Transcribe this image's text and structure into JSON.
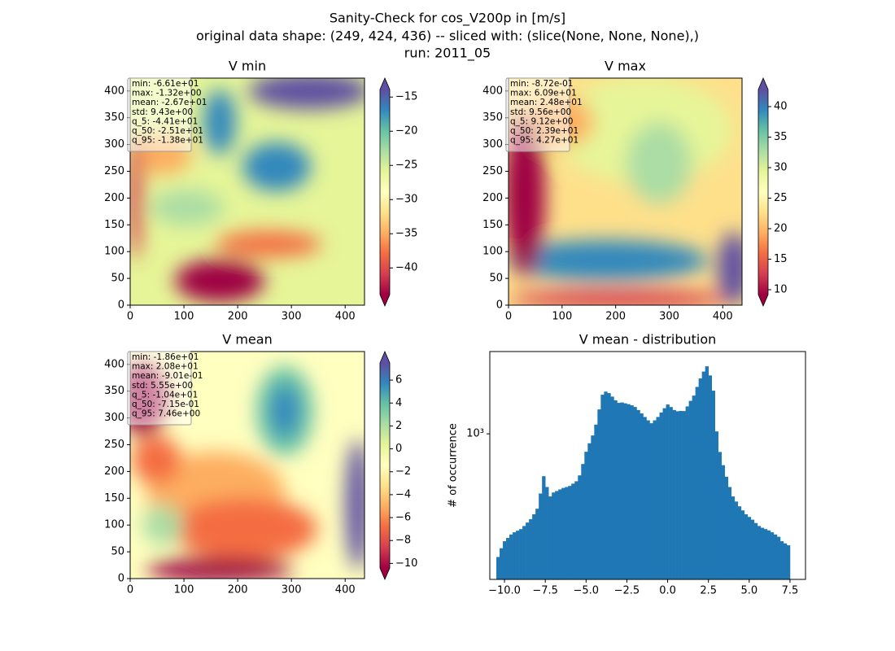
{
  "title": [
    "Sanity-Check for cos_V200p in [m/s]",
    "original data shape: (249, 424, 436) -- sliced with: (slice(None, None, None),)",
    "run: 2011_05"
  ],
  "chart_data": [
    {
      "type": "heatmap",
      "title": "V min",
      "colormap": "Spectral",
      "xlim": [
        0,
        436
      ],
      "ylim": [
        0,
        424
      ],
      "xticks": [
        0,
        100,
        200,
        300,
        400
      ],
      "yticks": [
        0,
        50,
        100,
        150,
        200,
        250,
        300,
        350,
        400
      ],
      "clim": [
        -43.9,
        -13.9
      ],
      "cticks": [
        {
          "value": -40,
          "label": "−40"
        },
        {
          "value": -35,
          "label": "−35"
        },
        {
          "value": -30,
          "label": "−30"
        },
        {
          "value": -25,
          "label": "−25"
        },
        {
          "value": -20,
          "label": "−20"
        },
        {
          "value": -15,
          "label": "−15"
        }
      ],
      "stats": [
        "min: -6.61e+01",
        "max: -1.32e+00",
        "mean: -2.67e+01",
        "std: 9.43e+00",
        "q_5: -4.41e+01",
        "q_50: -2.51e+01",
        "q_95: -1.38e+01"
      ]
    },
    {
      "type": "heatmap",
      "title": "V max",
      "colormap": "Spectral",
      "xlim": [
        0,
        436
      ],
      "ylim": [
        0,
        424
      ],
      "xticks": [
        0,
        100,
        200,
        300,
        400
      ],
      "yticks": [
        0,
        50,
        100,
        150,
        200,
        250,
        300,
        350,
        400
      ],
      "clim": [
        9.2,
        42.8
      ],
      "cticks": [
        10,
        15,
        20,
        25,
        30,
        35,
        40
      ],
      "stats": [
        "min: -8.72e-01",
        "max: 6.09e+01",
        "mean: 2.48e+01",
        "std: 9.56e+00",
        "q_5: 9.12e+00",
        "q_50: 2.39e+01",
        "q_95: 4.27e+01"
      ]
    },
    {
      "type": "heatmap",
      "title": "V mean",
      "colormap": "Spectral",
      "xlim": [
        0,
        436
      ],
      "ylim": [
        0,
        424
      ],
      "xticks": [
        0,
        100,
        200,
        300,
        400
      ],
      "yticks": [
        0,
        50,
        100,
        150,
        200,
        250,
        300,
        350,
        400
      ],
      "clim": [
        -10.4,
        7.5
      ],
      "cticks": [
        {
          "value": -10,
          "label": "−10"
        },
        {
          "value": -8,
          "label": "−8"
        },
        {
          "value": -6,
          "label": "−6"
        },
        {
          "value": -4,
          "label": "−4"
        },
        {
          "value": -2,
          "label": "−2"
        },
        0,
        2,
        4,
        6
      ],
      "stats": [
        "min: -1.86e+01",
        "max: 2.08e+01",
        "mean: -9.01e-01",
        "std: 5.55e+00",
        "q_5: -1.04e+01",
        "q_50: -7.15e-01",
        "q_95: 7.46e+00"
      ]
    },
    {
      "type": "histogram",
      "title": "V mean - distribution",
      "y_label": "# of occurrence",
      "color": "#1f77b4",
      "log_y": true,
      "xlim": [
        -10.9,
        8.45
      ],
      "ylim": [
        167,
        2750
      ],
      "xticks": [
        {
          "value": -10.0,
          "label": "−10.0"
        },
        {
          "value": -7.5,
          "label": "−7.5"
        },
        {
          "value": -5.0,
          "label": "−5.0"
        },
        {
          "value": -2.5,
          "label": "−2.5"
        },
        {
          "value": 0.0,
          "label": "0.0"
        },
        2.5,
        {
          "value": 5.0,
          "label": "5.0"
        },
        7.5
      ],
      "yticks": [
        {
          "value": 1000,
          "label": "10³"
        }
      ],
      "bins": [
        -10.5,
        -10.3,
        -10.1,
        -9.9,
        -9.7,
        -9.5,
        -9.3,
        -9.1,
        -8.9,
        -8.7,
        -8.5,
        -8.3,
        -8.1,
        -7.9,
        -7.7,
        -7.5,
        -7.3,
        -7.1,
        -6.9,
        -6.7,
        -6.5,
        -6.3,
        -6.1,
        -5.9,
        -5.7,
        -5.5,
        -5.3,
        -5.1,
        -4.9,
        -4.7,
        -4.5,
        -4.3,
        -4.1,
        -3.9,
        -3.7,
        -3.5,
        -3.3,
        -3.1,
        -2.9,
        -2.7,
        -2.5,
        -2.3,
        -2.1,
        -1.9,
        -1.7,
        -1.5,
        -1.3,
        -1.1,
        -0.9,
        -0.7,
        -0.5,
        -0.3,
        -0.1,
        0.1,
        0.3,
        0.5,
        0.7,
        0.9,
        1.1,
        1.3,
        1.5,
        1.7,
        1.9,
        2.1,
        2.3,
        2.5,
        2.7,
        2.9,
        3.1,
        3.3,
        3.5,
        3.7,
        3.9,
        4.1,
        4.3,
        4.5,
        4.7,
        4.9,
        5.1,
        5.3,
        5.5,
        5.7,
        5.9,
        6.1,
        6.3,
        6.5,
        6.7,
        6.9,
        7.1,
        7.3,
        7.5
      ],
      "values": [
        220,
        245,
        267,
        278,
        290,
        298,
        304,
        310,
        322,
        336,
        350,
        372,
        398,
        480,
        594,
        520,
        463,
        486,
        495,
        505,
        514,
        520,
        527,
        542,
        558,
        600,
        690,
        802,
        890,
        980,
        1120,
        1350,
        1617,
        1680,
        1650,
        1580,
        1510,
        1463,
        1470,
        1455,
        1440,
        1420,
        1391,
        1340,
        1285,
        1230,
        1180,
        1139,
        1180,
        1230,
        1300,
        1370,
        1434,
        1390,
        1340,
        1320,
        1325,
        1323,
        1400,
        1500,
        1600,
        1780,
        1975,
        2150,
        2294,
        2050,
        1700,
        1030,
        800,
        680,
        590,
        520,
        463,
        435,
        410,
        390,
        372,
        360,
        348,
        334,
        322,
        315,
        310,
        305,
        298,
        290,
        282,
        267,
        260,
        254
      ]
    }
  ]
}
